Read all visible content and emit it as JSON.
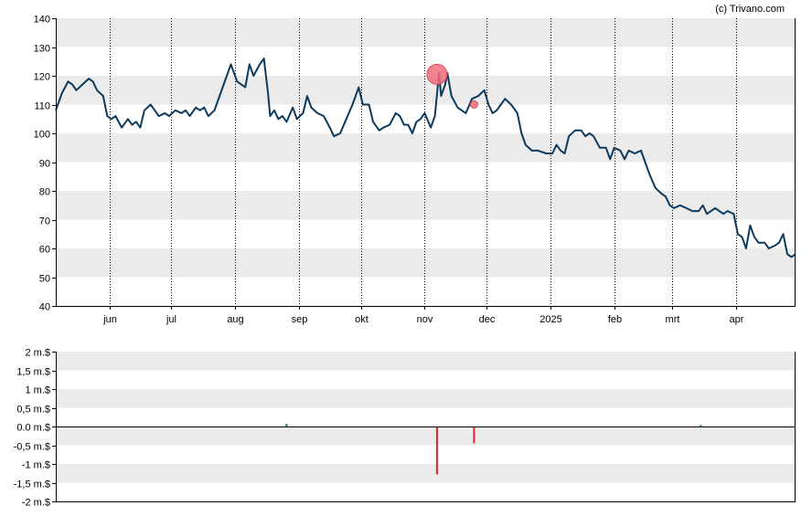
{
  "credit": "(c) Trivano.com",
  "colors": {
    "line": "#0d3a5c",
    "band": "#ebebeb",
    "marker": "#f26d7d",
    "marker_edge": "#d94b5a",
    "bar_negative": "#e0212e",
    "bar_positive": "#1a7a4a",
    "axis": "#000000"
  },
  "chart_data": [
    {
      "type": "line",
      "title": "",
      "xlabel": "",
      "ylabel": "",
      "ylim": [
        40,
        140
      ],
      "y_ticks": [
        40,
        50,
        60,
        70,
        80,
        90,
        100,
        110,
        120,
        130,
        140
      ],
      "x_range": [
        "2024-05-06",
        "2025-04-30"
      ],
      "month_ticks": [
        {
          "label": "jun",
          "date": "2024-06-01"
        },
        {
          "label": "jul",
          "date": "2024-07-01"
        },
        {
          "label": "aug",
          "date": "2024-08-01"
        },
        {
          "label": "sep",
          "date": "2024-09-01"
        },
        {
          "label": "okt",
          "date": "2024-10-01"
        },
        {
          "label": "nov",
          "date": "2024-11-01"
        },
        {
          "label": "dec",
          "date": "2024-12-01"
        },
        {
          "label": "2025",
          "date": "2025-01-01"
        },
        {
          "label": "feb",
          "date": "2025-02-01"
        },
        {
          "label": "mrt",
          "date": "2025-03-01"
        },
        {
          "label": "apr",
          "date": "2025-04-01"
        }
      ],
      "grid": "horizontal bands, dotted vertical month lines",
      "series": [
        {
          "points": [
            [
              "2024-05-06",
              108
            ],
            [
              "2024-05-09",
              114
            ],
            [
              "2024-05-12",
              118
            ],
            [
              "2024-05-14",
              117
            ],
            [
              "2024-05-16",
              115
            ],
            [
              "2024-05-19",
              117
            ],
            [
              "2024-05-22",
              119
            ],
            [
              "2024-05-24",
              118
            ],
            [
              "2024-05-26",
              115
            ],
            [
              "2024-05-29",
              113
            ],
            [
              "2024-05-31",
              106
            ],
            [
              "2024-06-02",
              105
            ],
            [
              "2024-06-04",
              106
            ],
            [
              "2024-06-07",
              102
            ],
            [
              "2024-06-10",
              105
            ],
            [
              "2024-06-12",
              103
            ],
            [
              "2024-06-14",
              104
            ],
            [
              "2024-06-16",
              102
            ],
            [
              "2024-06-18",
              108
            ],
            [
              "2024-06-21",
              110
            ],
            [
              "2024-06-23",
              108
            ],
            [
              "2024-06-25",
              106
            ],
            [
              "2024-06-28",
              107
            ],
            [
              "2024-06-30",
              106
            ],
            [
              "2024-07-03",
              108
            ],
            [
              "2024-07-06",
              107
            ],
            [
              "2024-07-08",
              108
            ],
            [
              "2024-07-10",
              106
            ],
            [
              "2024-07-13",
              109
            ],
            [
              "2024-07-15",
              108
            ],
            [
              "2024-07-17",
              109
            ],
            [
              "2024-07-19",
              106
            ],
            [
              "2024-07-22",
              108
            ],
            [
              "2024-07-25",
              114
            ],
            [
              "2024-07-28",
              120
            ],
            [
              "2024-07-30",
              124
            ],
            [
              "2024-08-02",
              118
            ],
            [
              "2024-08-04",
              117
            ],
            [
              "2024-08-06",
              116
            ],
            [
              "2024-08-08",
              124
            ],
            [
              "2024-08-10",
              120
            ],
            [
              "2024-08-13",
              124
            ],
            [
              "2024-08-15",
              126
            ],
            [
              "2024-08-17",
              114
            ],
            [
              "2024-08-18",
              106
            ],
            [
              "2024-08-20",
              108
            ],
            [
              "2024-08-22",
              105
            ],
            [
              "2024-08-24",
              106
            ],
            [
              "2024-08-26",
              104
            ],
            [
              "2024-08-29",
              109
            ],
            [
              "2024-08-31",
              105
            ],
            [
              "2024-09-03",
              107
            ],
            [
              "2024-09-05",
              113
            ],
            [
              "2024-09-07",
              109
            ],
            [
              "2024-09-10",
              107
            ],
            [
              "2024-09-13",
              106
            ],
            [
              "2024-09-16",
              102
            ],
            [
              "2024-09-18",
              99
            ],
            [
              "2024-09-21",
              100
            ],
            [
              "2024-09-24",
              105
            ],
            [
              "2024-09-27",
              110
            ],
            [
              "2024-09-30",
              116
            ],
            [
              "2024-10-02",
              110
            ],
            [
              "2024-10-05",
              110
            ],
            [
              "2024-10-07",
              104
            ],
            [
              "2024-10-10",
              101
            ],
            [
              "2024-10-12",
              102
            ],
            [
              "2024-10-15",
              103
            ],
            [
              "2024-10-18",
              107
            ],
            [
              "2024-10-20",
              106
            ],
            [
              "2024-10-22",
              103
            ],
            [
              "2024-10-24",
              103
            ],
            [
              "2024-10-26",
              100
            ],
            [
              "2024-10-28",
              104
            ],
            [
              "2024-10-30",
              105
            ],
            [
              "2024-11-01",
              107
            ],
            [
              "2024-11-04",
              102
            ],
            [
              "2024-11-06",
              106
            ],
            [
              "2024-11-08",
              121
            ],
            [
              "2024-11-09",
              113
            ],
            [
              "2024-11-11",
              117
            ],
            [
              "2024-11-12",
              121
            ],
            [
              "2024-11-14",
              113
            ],
            [
              "2024-11-17",
              109
            ],
            [
              "2024-11-19",
              108
            ],
            [
              "2024-11-21",
              107
            ],
            [
              "2024-11-24",
              112
            ],
            [
              "2024-11-27",
              113
            ],
            [
              "2024-11-30",
              115
            ],
            [
              "2024-12-02",
              110
            ],
            [
              "2024-12-04",
              107
            ],
            [
              "2024-12-06",
              108
            ],
            [
              "2024-12-08",
              110
            ],
            [
              "2024-12-10",
              112
            ],
            [
              "2024-12-13",
              110
            ],
            [
              "2024-12-16",
              107
            ],
            [
              "2024-12-18",
              100
            ],
            [
              "2024-12-20",
              96
            ],
            [
              "2024-12-23",
              94
            ],
            [
              "2024-12-26",
              94
            ],
            [
              "2024-12-30",
              93
            ],
            [
              "2025-01-02",
              93
            ],
            [
              "2025-01-04",
              96
            ],
            [
              "2025-01-06",
              94
            ],
            [
              "2025-01-08",
              93
            ],
            [
              "2025-01-10",
              99
            ],
            [
              "2025-01-13",
              101
            ],
            [
              "2025-01-16",
              101
            ],
            [
              "2025-01-18",
              99
            ],
            [
              "2025-01-20",
              100
            ],
            [
              "2025-01-22",
              99
            ],
            [
              "2025-01-25",
              95
            ],
            [
              "2025-01-28",
              95
            ],
            [
              "2025-01-30",
              91
            ],
            [
              "2025-02-01",
              95
            ],
            [
              "2025-02-04",
              94
            ],
            [
              "2025-02-06",
              91
            ],
            [
              "2025-02-08",
              94
            ],
            [
              "2025-02-11",
              93
            ],
            [
              "2025-02-14",
              94
            ],
            [
              "2025-02-16",
              90
            ],
            [
              "2025-02-18",
              86
            ],
            [
              "2025-02-21",
              81
            ],
            [
              "2025-02-24",
              79
            ],
            [
              "2025-02-26",
              78
            ],
            [
              "2025-02-28",
              75
            ],
            [
              "2025-03-02",
              74
            ],
            [
              "2025-03-05",
              75
            ],
            [
              "2025-03-08",
              74
            ],
            [
              "2025-03-11",
              73
            ],
            [
              "2025-03-14",
              73
            ],
            [
              "2025-03-16",
              75
            ],
            [
              "2025-03-18",
              72
            ],
            [
              "2025-03-20",
              73
            ],
            [
              "2025-03-22",
              74
            ],
            [
              "2025-03-24",
              73
            ],
            [
              "2025-03-26",
              72
            ],
            [
              "2025-03-28",
              73
            ],
            [
              "2025-03-31",
              72
            ],
            [
              "2025-04-02",
              65
            ],
            [
              "2025-04-04",
              64
            ],
            [
              "2025-04-06",
              60
            ],
            [
              "2025-04-08",
              68
            ],
            [
              "2025-04-10",
              64
            ],
            [
              "2025-04-12",
              62
            ],
            [
              "2025-04-15",
              62
            ],
            [
              "2025-04-17",
              60
            ],
            [
              "2025-04-20",
              61
            ],
            [
              "2025-04-22",
              62
            ],
            [
              "2025-04-24",
              65
            ],
            [
              "2025-04-26",
              58
            ],
            [
              "2025-04-28",
              57
            ],
            [
              "2025-04-30",
              58
            ]
          ]
        }
      ],
      "markers": [
        {
          "date": "2024-11-07",
          "value": 120.5,
          "size": "large"
        },
        {
          "date": "2024-11-25",
          "value": 110,
          "size": "small"
        }
      ]
    },
    {
      "type": "bar",
      "title": "",
      "xlabel": "",
      "ylabel": "",
      "ylim": [
        -2,
        2
      ],
      "y_ticks": [
        {
          "value": 2,
          "label": "2 m.$"
        },
        {
          "value": 1.5,
          "label": "1,5 m.$"
        },
        {
          "value": 1,
          "label": "1 m.$"
        },
        {
          "value": 0.5,
          "label": "0,5 m.$"
        },
        {
          "value": 0,
          "label": "0.0 m.$"
        },
        {
          "value": -0.5,
          "label": "-0,5 m.$"
        },
        {
          "value": -1,
          "label": "-1 m.$"
        },
        {
          "value": -1.5,
          "label": "-1,5 m.$"
        },
        {
          "value": -2,
          "label": "-2 m.$"
        }
      ],
      "x_range": [
        "2024-05-06",
        "2025-04-30"
      ],
      "bars": [
        {
          "date": "2024-08-26",
          "value": 0.07
        },
        {
          "date": "2024-11-07",
          "value": -1.28
        },
        {
          "date": "2024-11-25",
          "value": -0.45
        },
        {
          "date": "2025-03-15",
          "value": 0.04
        }
      ]
    }
  ]
}
